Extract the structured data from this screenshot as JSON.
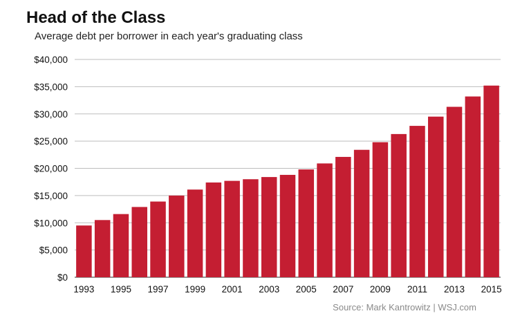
{
  "chart_data": {
    "type": "bar",
    "title": "Head of the Class",
    "subtitle": "Average debt per borrower in each year's graduating class",
    "categories": [
      "1993",
      "1994",
      "1995",
      "1996",
      "1997",
      "1998",
      "1999",
      "2000",
      "2001",
      "2002",
      "2003",
      "2004",
      "2005",
      "2006",
      "2007",
      "2008",
      "2009",
      "2010",
      "2011",
      "2012",
      "2013",
      "2014",
      "2015"
    ],
    "x_tick_labels": [
      "1993",
      "1995",
      "1997",
      "1999",
      "2001",
      "2003",
      "2005",
      "2007",
      "2009",
      "2011",
      "2013",
      "2015"
    ],
    "y_tick_labels": [
      "$0",
      "$5,000",
      "$10,000",
      "$15,000",
      "$20,000",
      "$25,000",
      "$30,000",
      "$35,000",
      "$40,000"
    ],
    "series": [
      {
        "values": [
          9500,
          10500,
          11600,
          12900,
          13900,
          15000,
          16100,
          17400,
          17700,
          18000,
          18400,
          18800,
          19800,
          20900,
          22100,
          23400,
          24800,
          26300,
          27800,
          29500,
          31300,
          33200,
          35200
        ]
      }
    ],
    "ylim": [
      0,
      40000
    ],
    "xlabel": "",
    "ylabel": "",
    "grid": true,
    "bar_color": "#c41e32",
    "grid_color": "#bdbdbd",
    "source": "Source: Mark Kantrowitz  |  WSJ.com"
  }
}
